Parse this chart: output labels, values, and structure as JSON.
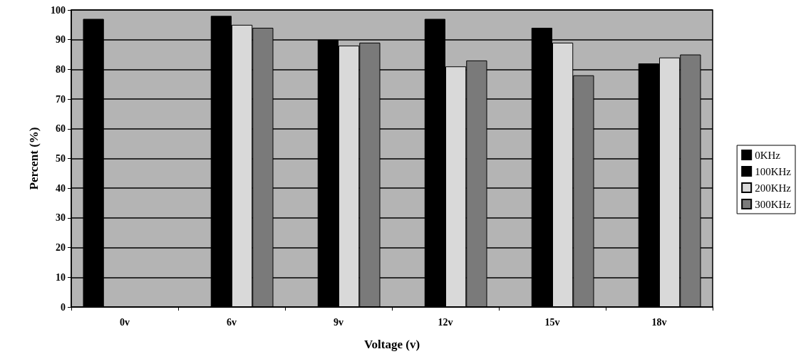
{
  "chart_data": {
    "type": "bar",
    "xlabel": "Voltage (v)",
    "ylabel": "Percent (%)",
    "categories": [
      "0v",
      "6v",
      "9v",
      "12v",
      "15v",
      "18v"
    ],
    "series": [
      {
        "name": "0KHz",
        "color": "#000000",
        "values": [
          97,
          null,
          null,
          null,
          null,
          null
        ]
      },
      {
        "name": "100KHz",
        "color": "#000000",
        "values": [
          null,
          98,
          90,
          97,
          94,
          82
        ]
      },
      {
        "name": "200KHz",
        "color": "#d9d9d9",
        "values": [
          null,
          95,
          88,
          81,
          89,
          84
        ]
      },
      {
        "name": "300KHz",
        "color": "#7a7a7a",
        "values": [
          null,
          94,
          89,
          83,
          78,
          85
        ]
      }
    ],
    "ylim": [
      0,
      100
    ],
    "yticks": [
      0,
      10,
      20,
      30,
      40,
      50,
      60,
      70,
      80,
      90,
      100
    ],
    "grid": "y",
    "legend": "right"
  }
}
